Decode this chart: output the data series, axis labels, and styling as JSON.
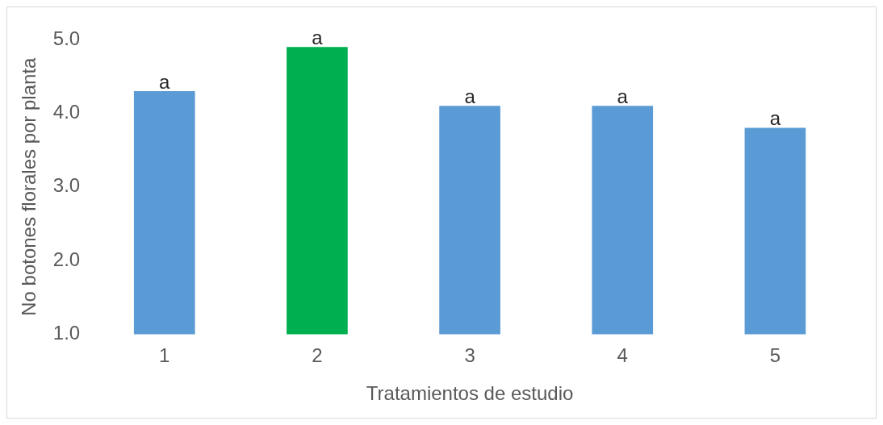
{
  "chart_data": {
    "type": "bar",
    "xlabel": "Tratamientos de estudio",
    "ylabel": "No botones florales por planta",
    "categories": [
      "1",
      "2",
      "3",
      "4",
      "5"
    ],
    "values": [
      4.3,
      4.9,
      4.1,
      4.1,
      3.8
    ],
    "colors": [
      "#5b9bd5",
      "#00b050",
      "#5b9bd5",
      "#5b9bd5",
      "#5b9bd5"
    ],
    "ylim": [
      1,
      5
    ],
    "yticks": [
      {
        "value": 1,
        "label": "1.0"
      },
      {
        "value": 2,
        "label": "2.0"
      },
      {
        "value": 3,
        "label": "3.0"
      },
      {
        "value": 4,
        "label": "4.0"
      },
      {
        "value": 5,
        "label": "5.0"
      }
    ],
    "grid": false,
    "legend": false,
    "annotations": [
      {
        "text": "a",
        "x": "1",
        "y": 4.3
      },
      {
        "text": "a",
        "x": "2",
        "y": 4.9
      },
      {
        "text": "a",
        "x": "3",
        "y": 4.1
      },
      {
        "text": "a",
        "x": "4",
        "y": 4.1
      },
      {
        "text": "a",
        "x": "5",
        "y": 3.8
      }
    ]
  }
}
